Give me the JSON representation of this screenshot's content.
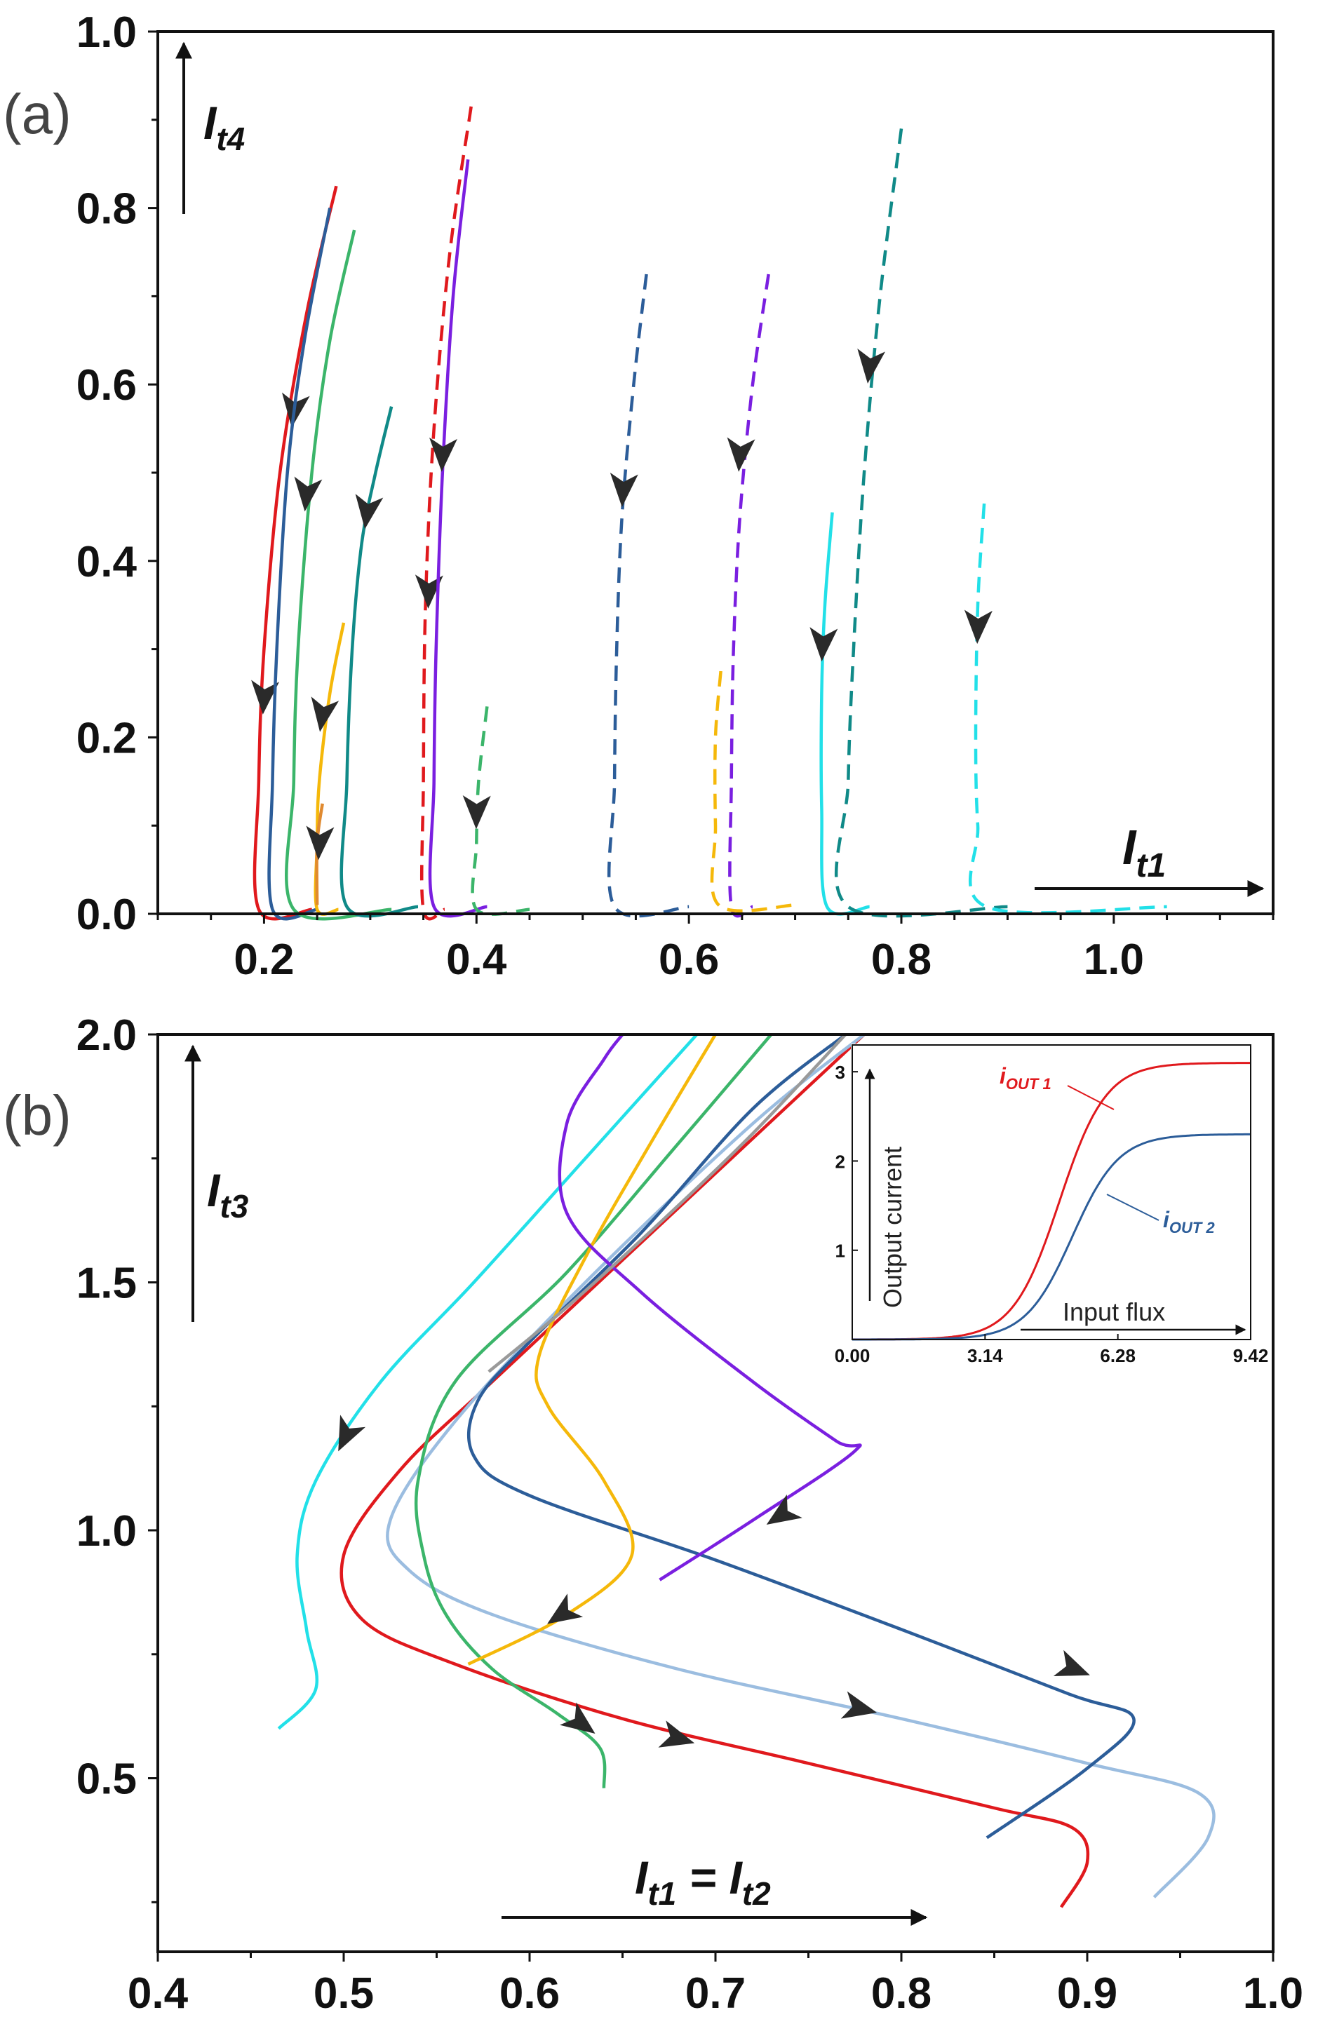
{
  "chart_data": [
    {
      "panel": "(a)",
      "type": "line",
      "xlabel": {
        "main": "I",
        "sub": "t1"
      },
      "ylabel": {
        "main": "I",
        "sub": "t4"
      },
      "xlim": [
        0.1,
        1.15
      ],
      "ylim": [
        0.0,
        1.0
      ],
      "xticks": [
        "0.2",
        "0.4",
        "0.6",
        "0.8",
        "1.0"
      ],
      "xtick_values": [
        0.2,
        0.4,
        0.6,
        0.8,
        1.0
      ],
      "yticks": [
        "0.0",
        "0.2",
        "0.4",
        "0.6",
        "0.8",
        "1.0"
      ],
      "ytick_values": [
        0.0,
        0.2,
        0.4,
        0.6,
        0.8,
        1.0
      ],
      "series": [
        {
          "name": "red-solid",
          "color": "#e0191d",
          "style": "solid",
          "points": [
            [
              0.268,
              0.825
            ],
            [
              0.24,
              0.68
            ],
            [
              0.215,
              0.5
            ],
            [
              0.2,
              0.3
            ],
            [
              0.195,
              0.15
            ],
            [
              0.195,
              0.005
            ],
            [
              0.245,
              0.005
            ]
          ],
          "arrows": [
            [
              0.228,
              0.57
            ],
            [
              0.2,
              0.245
            ]
          ]
        },
        {
          "name": "blue-solid",
          "color": "#2c5d99",
          "style": "solid",
          "points": [
            [
              0.262,
              0.8
            ],
            [
              0.238,
              0.65
            ],
            [
              0.222,
              0.5
            ],
            [
              0.212,
              0.3
            ],
            [
              0.208,
              0.15
            ],
            [
              0.208,
              0.005
            ],
            [
              0.25,
              0.005
            ]
          ]
        },
        {
          "name": "green-solid",
          "color": "#3bb56a",
          "style": "solid",
          "points": [
            [
              0.285,
              0.775
            ],
            [
              0.262,
              0.65
            ],
            [
              0.245,
              0.5
            ],
            [
              0.232,
              0.3
            ],
            [
              0.228,
              0.15
            ],
            [
              0.228,
              0.005
            ],
            [
              0.32,
              0.005
            ]
          ],
          "arrows": [
            [
              0.24,
              0.475
            ]
          ]
        },
        {
          "name": "teal-solid",
          "color": "#108a88",
          "style": "solid",
          "points": [
            [
              0.32,
              0.575
            ],
            [
              0.305,
              0.5
            ],
            [
              0.292,
              0.42
            ],
            [
              0.283,
              0.3
            ],
            [
              0.278,
              0.15
            ],
            [
              0.278,
              0.008
            ],
            [
              0.345,
              0.008
            ]
          ],
          "arrows": [
            [
              0.297,
              0.455
            ]
          ]
        },
        {
          "name": "yellow-solid",
          "color": "#f5b80a",
          "style": "solid",
          "points": [
            [
              0.275,
              0.33
            ],
            [
              0.262,
              0.25
            ],
            [
              0.252,
              0.15
            ],
            [
              0.25,
              0.08
            ],
            [
              0.25,
              0.005
            ],
            [
              0.27,
              0.005
            ]
          ],
          "arrows": [
            [
              0.255,
              0.225
            ]
          ]
        },
        {
          "name": "orange-short",
          "color": "#e08a30",
          "style": "solid",
          "points": [
            [
              0.255,
              0.125
            ],
            [
              0.25,
              0.08
            ],
            [
              0.25,
              0.01
            ]
          ],
          "arrows": [
            [
              0.252,
              0.08
            ]
          ]
        },
        {
          "name": "red-dashed",
          "color": "#e0191d",
          "style": "dashed",
          "points": [
            [
              0.395,
              0.915
            ],
            [
              0.375,
              0.75
            ],
            [
              0.36,
              0.55
            ],
            [
              0.352,
              0.35
            ],
            [
              0.35,
              0.15
            ],
            [
              0.35,
              0.005
            ],
            [
              0.37,
              0.005
            ]
          ],
          "arrows": [
            [
              0.355,
              0.365
            ]
          ]
        },
        {
          "name": "purple-solid",
          "color": "#7a1fe0",
          "style": "solid",
          "points": [
            [
              0.392,
              0.855
            ],
            [
              0.378,
              0.7
            ],
            [
              0.368,
              0.5
            ],
            [
              0.362,
              0.3
            ],
            [
              0.36,
              0.15
            ],
            [
              0.36,
              0.008
            ],
            [
              0.41,
              0.008
            ]
          ],
          "arrows": [
            [
              0.368,
              0.52
            ]
          ]
        },
        {
          "name": "green-dashed",
          "color": "#3bb56a",
          "style": "dashed",
          "points": [
            [
              0.41,
              0.235
            ],
            [
              0.402,
              0.15
            ],
            [
              0.4,
              0.08
            ],
            [
              0.4,
              0.005
            ],
            [
              0.45,
              0.005
            ]
          ],
          "arrows": [
            [
              0.4,
              0.115
            ]
          ]
        },
        {
          "name": "blue-dashed",
          "color": "#2c5d99",
          "style": "dashed",
          "points": [
            [
              0.56,
              0.725
            ],
            [
              0.548,
              0.6
            ],
            [
              0.537,
              0.45
            ],
            [
              0.532,
              0.3
            ],
            [
              0.53,
              0.15
            ],
            [
              0.53,
              0.008
            ],
            [
              0.6,
              0.008
            ]
          ],
          "arrows": [
            [
              0.538,
              0.48
            ]
          ]
        },
        {
          "name": "purple-dashed",
          "color": "#7a1fe0",
          "style": "dashed",
          "points": [
            [
              0.675,
              0.725
            ],
            [
              0.66,
              0.6
            ],
            [
              0.648,
              0.45
            ],
            [
              0.642,
              0.3
            ],
            [
              0.64,
              0.15
            ],
            [
              0.64,
              0.008
            ],
            [
              0.66,
              0.008
            ]
          ],
          "arrows": [
            [
              0.648,
              0.52
            ]
          ]
        },
        {
          "name": "yellow-dashed",
          "color": "#f5b80a",
          "style": "dashed",
          "points": [
            [
              0.63,
              0.275
            ],
            [
              0.625,
              0.2
            ],
            [
              0.625,
              0.1
            ],
            [
              0.628,
              0.01
            ],
            [
              0.7,
              0.01
            ]
          ]
        },
        {
          "name": "cyan-solid",
          "color": "#22e0e8",
          "style": "solid",
          "points": [
            [
              0.735,
              0.455
            ],
            [
              0.728,
              0.35
            ],
            [
              0.725,
              0.25
            ],
            [
              0.725,
              0.12
            ],
            [
              0.73,
              0.008
            ],
            [
              0.77,
              0.008
            ]
          ],
          "arrows": [
            [
              0.726,
              0.305
            ]
          ]
        },
        {
          "name": "teal-dashed",
          "color": "#108a88",
          "style": "dashed",
          "points": [
            [
              0.8,
              0.89
            ],
            [
              0.78,
              0.7
            ],
            [
              0.765,
              0.5
            ],
            [
              0.755,
              0.3
            ],
            [
              0.75,
              0.15
            ],
            [
              0.75,
              0.008
            ],
            [
              0.9,
              0.008
            ]
          ],
          "arrows": [
            [
              0.77,
              0.62
            ]
          ]
        },
        {
          "name": "cyan-dashed",
          "color": "#22e0e8",
          "style": "dashed",
          "points": [
            [
              0.878,
              0.465
            ],
            [
              0.872,
              0.35
            ],
            [
              0.87,
              0.2
            ],
            [
              0.872,
              0.1
            ],
            [
              0.88,
              0.008
            ],
            [
              1.05,
              0.008
            ]
          ],
          "arrows": [
            [
              0.872,
              0.325
            ]
          ]
        }
      ]
    },
    {
      "panel": "(b)",
      "type": "line",
      "xlabel": {
        "main": "I",
        "sub1": "t1",
        "eq": " = ",
        "main2": "I",
        "sub2": "t2"
      },
      "ylabel": {
        "main": "I",
        "sub": "t3"
      },
      "xlim": [
        0.4,
        1.0
      ],
      "ylim": [
        0.15,
        2.0
      ],
      "xticks": [
        "0.4",
        "0.5",
        "0.6",
        "0.7",
        "0.8",
        "0.9",
        "1.0"
      ],
      "xtick_values": [
        0.4,
        0.5,
        0.6,
        0.7,
        0.8,
        0.9,
        1.0
      ],
      "yticks": [
        "0.5",
        "1.0",
        "1.5",
        "2.0"
      ],
      "ytick_values": [
        0.5,
        1.0,
        1.5,
        2.0
      ],
      "series": [
        {
          "name": "cyan",
          "color": "#22e0e8",
          "points": [
            [
              0.465,
              0.6
            ],
            [
              0.485,
              0.68
            ],
            [
              0.48,
              0.8
            ],
            [
              0.475,
              0.95
            ],
            [
              0.485,
              1.1
            ],
            [
              0.52,
              1.3
            ],
            [
              0.57,
              1.5
            ],
            [
              0.63,
              1.75
            ],
            [
              0.69,
              2.0
            ]
          ],
          "arrows": [
            [
              0.501,
              1.19
            ]
          ]
        },
        {
          "name": "red",
          "color": "#e0191d",
          "points": [
            [
              0.886,
              0.24
            ],
            [
              0.9,
              0.33
            ],
            [
              0.892,
              0.4
            ],
            [
              0.85,
              0.44
            ],
            [
              0.75,
              0.53
            ],
            [
              0.65,
              0.62
            ],
            [
              0.56,
              0.73
            ],
            [
              0.51,
              0.82
            ],
            [
              0.5,
              0.95
            ],
            [
              0.53,
              1.12
            ],
            [
              0.58,
              1.3
            ],
            [
              0.68,
              1.65
            ],
            [
              0.78,
              2.0
            ]
          ],
          "arrows": [
            [
              0.68,
              0.58
            ]
          ]
        },
        {
          "name": "lightblue",
          "color": "#9bbde0",
          "points": [
            [
              0.936,
              0.26
            ],
            [
              0.965,
              0.38
            ],
            [
              0.96,
              0.47
            ],
            [
              0.9,
              0.53
            ],
            [
              0.8,
              0.62
            ],
            [
              0.68,
              0.72
            ],
            [
              0.58,
              0.83
            ],
            [
              0.535,
              0.92
            ],
            [
              0.525,
              1.02
            ],
            [
              0.56,
              1.22
            ],
            [
              0.63,
              1.5
            ],
            [
              0.72,
              1.82
            ],
            [
              0.78,
              2.0
            ]
          ],
          "arrows": [
            [
              0.778,
              0.64
            ]
          ]
        },
        {
          "name": "darkblue",
          "color": "#2c5d99",
          "points": [
            [
              0.846,
              0.38
            ],
            [
              0.9,
              0.52
            ],
            [
              0.925,
              0.62
            ],
            [
              0.89,
              0.67
            ],
            [
              0.8,
              0.8
            ],
            [
              0.7,
              0.94
            ],
            [
              0.6,
              1.07
            ],
            [
              0.57,
              1.15
            ],
            [
              0.572,
              1.26
            ],
            [
              0.6,
              1.38
            ],
            [
              0.66,
              1.6
            ],
            [
              0.72,
              1.85
            ],
            [
              0.77,
              2.0
            ]
          ],
          "arrows": [
            [
              0.893,
              0.72
            ]
          ]
        },
        {
          "name": "green",
          "color": "#3bb56a",
          "points": [
            [
              0.64,
              0.48
            ],
            [
              0.638,
              0.56
            ],
            [
              0.615,
              0.63
            ],
            [
              0.58,
              0.72
            ],
            [
              0.555,
              0.83
            ],
            [
              0.543,
              0.95
            ],
            [
              0.54,
              1.1
            ],
            [
              0.56,
              1.3
            ],
            [
              0.62,
              1.52
            ],
            [
              0.68,
              1.78
            ],
            [
              0.73,
              2.0
            ]
          ],
          "arrows": [
            [
              0.628,
              0.61
            ]
          ]
        },
        {
          "name": "yellow",
          "color": "#f5b80a",
          "points": [
            [
              0.567,
              0.73
            ],
            [
              0.62,
              0.83
            ],
            [
              0.655,
              0.95
            ],
            [
              0.64,
              1.1
            ],
            [
              0.61,
              1.25
            ],
            [
              0.605,
              1.35
            ],
            [
              0.63,
              1.55
            ],
            [
              0.665,
              1.78
            ],
            [
              0.7,
              2.0
            ]
          ],
          "arrows": [
            [
              0.617,
              0.83
            ]
          ]
        },
        {
          "name": "purple",
          "color": "#7a1fe0",
          "points": [
            [
              0.67,
              0.9
            ],
            [
              0.72,
              1.02
            ],
            [
              0.775,
              1.16
            ],
            [
              0.765,
              1.18
            ],
            [
              0.72,
              1.3
            ],
            [
              0.66,
              1.48
            ],
            [
              0.62,
              1.64
            ],
            [
              0.62,
              1.82
            ],
            [
              0.64,
              1.95
            ],
            [
              0.65,
              2.0
            ]
          ],
          "arrows": [
            [
              0.735,
              1.03
            ]
          ]
        },
        {
          "name": "gray",
          "color": "#9a9a9a",
          "points": [
            [
              0.578,
              1.32
            ],
            [
              0.62,
              1.45
            ],
            [
              0.67,
              1.62
            ],
            [
              0.72,
              1.8
            ],
            [
              0.77,
              2.0
            ]
          ]
        }
      ],
      "inset": {
        "type": "line",
        "xlabel": "Input flux",
        "ylabel": "Output current",
        "xlim": [
          0,
          9.42
        ],
        "ylim": [
          0,
          3.3
        ],
        "xticks": [
          "0.00",
          "3.14",
          "6.28",
          "9.42"
        ],
        "xtick_values": [
          0,
          3.14,
          6.28,
          9.42
        ],
        "yticks": [
          "1",
          "2",
          "3"
        ],
        "ytick_values": [
          1,
          2,
          3
        ],
        "series": [
          {
            "name": "i_OUT 1",
            "label_main": "i",
            "label_sub": "OUT 1",
            "color": "#e0191d",
            "max": 3.1,
            "center": 4.9,
            "width": 0.55
          },
          {
            "name": "i_OUT 2",
            "label_main": "i",
            "label_sub": "OUT 2",
            "color": "#2c5d99",
            "max": 2.3,
            "center": 5.2,
            "width": 0.55
          }
        ]
      }
    }
  ]
}
